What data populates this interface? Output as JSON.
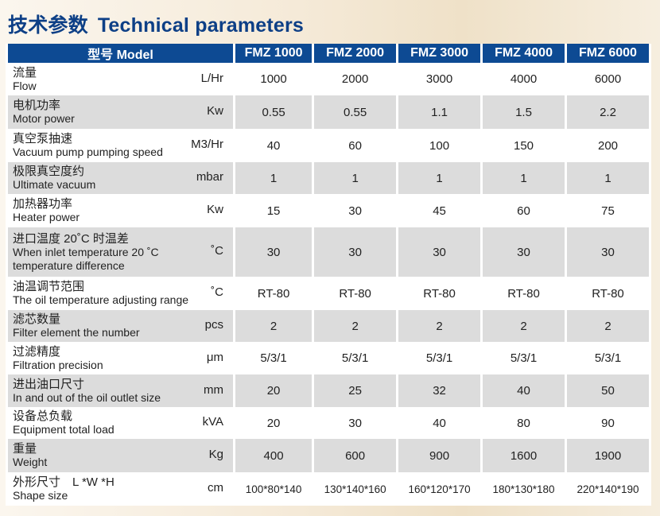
{
  "title": {
    "cn": "技术参数",
    "en": "Technical parameters"
  },
  "header": {
    "model": "型号 Model",
    "models": [
      "FMZ 1000",
      "FMZ 2000",
      "FMZ 3000",
      "FMZ 4000",
      "FMZ 6000"
    ]
  },
  "rows": [
    {
      "cn": "流量",
      "en": "Flow",
      "unit": "L/Hr",
      "values": [
        "1000",
        "2000",
        "3000",
        "4000",
        "6000"
      ]
    },
    {
      "cn": "电机功率",
      "en": "Motor power",
      "unit": "Kw",
      "values": [
        "0.55",
        "0.55",
        "1.1",
        "1.5",
        "2.2"
      ]
    },
    {
      "cn": "真空泵抽速",
      "en": "Vacuum pump pumping speed",
      "unit": "M3/Hr",
      "values": [
        "40",
        "60",
        "100",
        "150",
        "200"
      ]
    },
    {
      "cn": "极限真空度约",
      "en": "Ultimate vacuum",
      "unit": "mbar",
      "values": [
        "1",
        "1",
        "1",
        "1",
        "1"
      ]
    },
    {
      "cn": "加热器功率",
      "en": "Heater power",
      "unit": "Kw",
      "values": [
        "15",
        "30",
        "45",
        "60",
        "75"
      ]
    },
    {
      "cn": "进口温度 20˚C 时温差",
      "en": "When inlet temperature 20 ˚C",
      "en2": "temperature difference",
      "unit": "˚C",
      "values": [
        "30",
        "30",
        "30",
        "30",
        "30"
      ]
    },
    {
      "cn": "油温调节范围",
      "en": "The oil temperature adjusting range",
      "unit": "˚C",
      "values": [
        "RT-80",
        "RT-80",
        "RT-80",
        "RT-80",
        "RT-80"
      ]
    },
    {
      "cn": "滤芯数量",
      "en": "Filter element the number",
      "unit": "pcs",
      "values": [
        "2",
        "2",
        "2",
        "2",
        "2"
      ]
    },
    {
      "cn": "过滤精度",
      "en": "Filtration precision",
      "unit": "μm",
      "values": [
        "5/3/1",
        "5/3/1",
        "5/3/1",
        "5/3/1",
        "5/3/1"
      ]
    },
    {
      "cn": "进出油口尺寸",
      "en": "In and out of the oil outlet size",
      "unit": "mm",
      "values": [
        "20",
        "25",
        "32",
        "40",
        "50"
      ]
    },
    {
      "cn": "设备总负载",
      "en": "Equipment total load",
      "unit": "kVA",
      "values": [
        "20",
        "30",
        "40",
        "80",
        "90"
      ]
    },
    {
      "cn": "重量",
      "en": "Weight",
      "unit": "Kg",
      "values": [
        "400",
        "600",
        "900",
        "1600",
        "1900"
      ]
    },
    {
      "cn": "外形尺寸　L *W *H",
      "en": "Shape size",
      "unit": "cm",
      "values": [
        "100*80*140",
        "130*140*160",
        "160*120*170",
        "180*130*180",
        "220*140*190"
      ]
    }
  ]
}
